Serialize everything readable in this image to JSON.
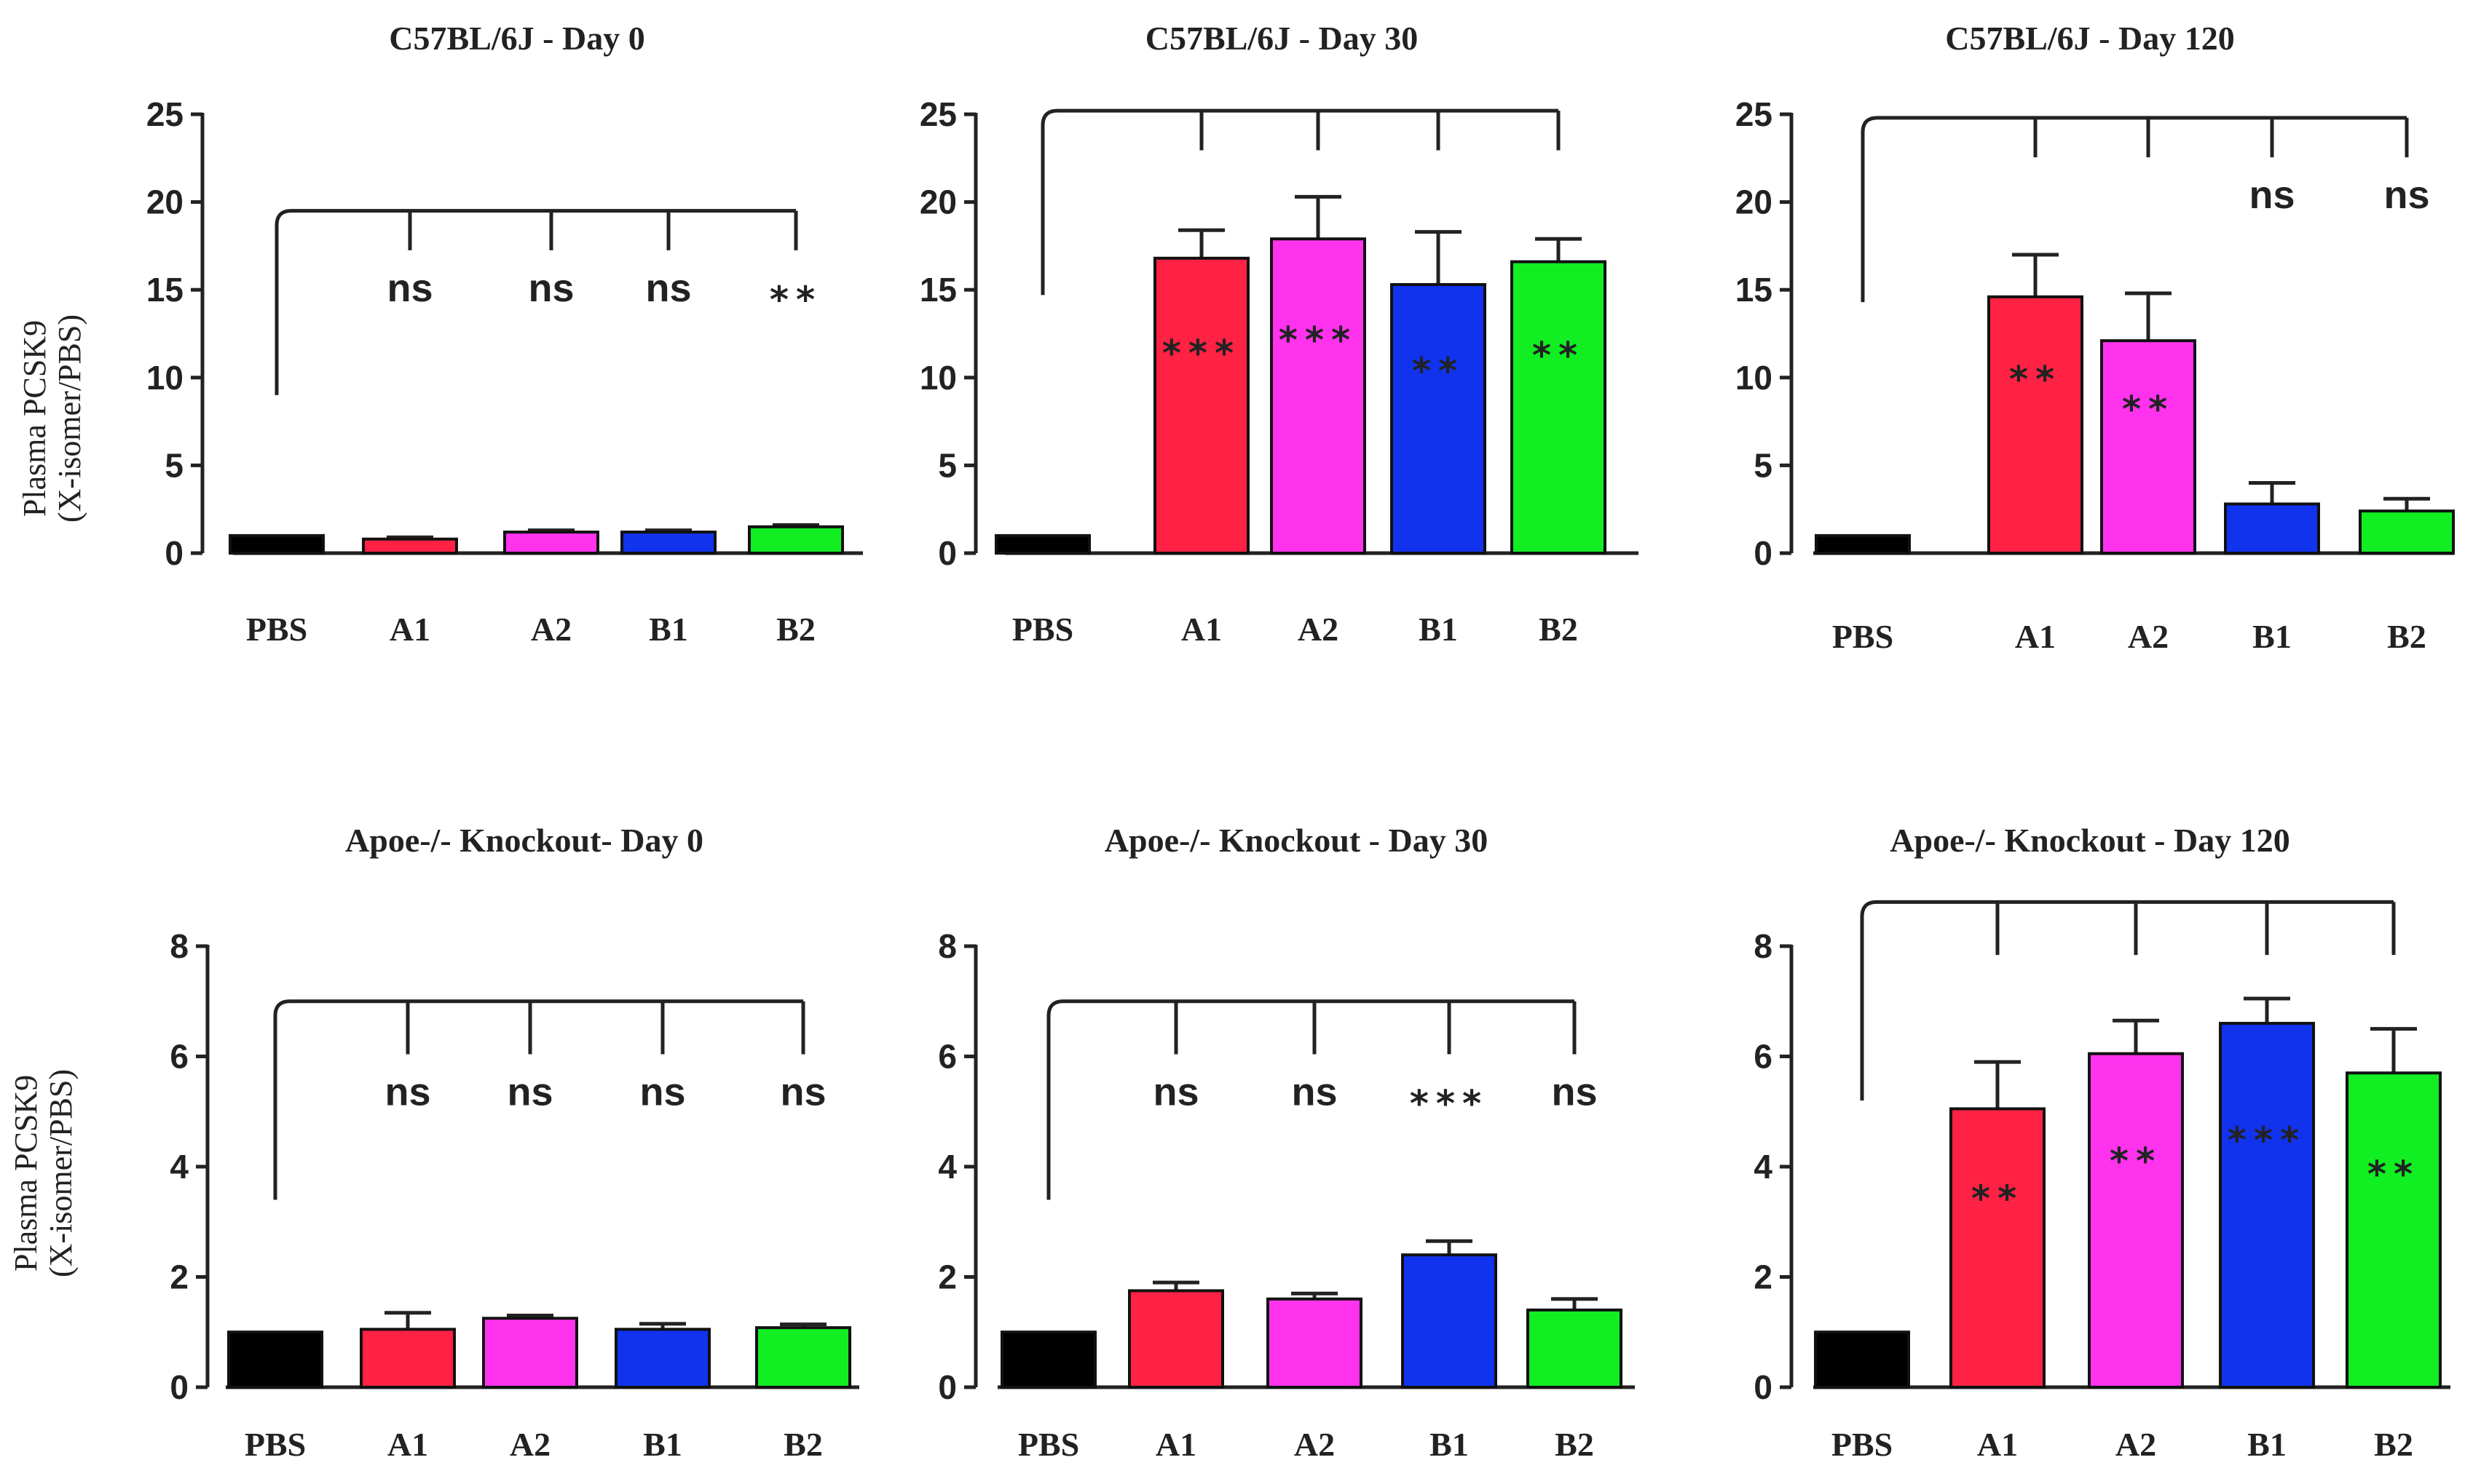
{
  "figure": {
    "y_label_line1": "Plasma PCSK9",
    "y_label_line2": "(X-isomer/PBS)"
  },
  "colors": {
    "PBS": "#000000",
    "A1": "#ff2244",
    "A2": "#ff33ee",
    "B1": "#1133ee",
    "B2": "#11ee22"
  },
  "chart_data": [
    {
      "type": "bar",
      "title": "C57BL/6J - Day 0",
      "ylabel": "Plasma PCSK9 (X-isomer/PBS)",
      "categories": [
        "PBS",
        "A1",
        "A2",
        "B1",
        "B2"
      ],
      "ylim": [
        0,
        25
      ],
      "yticks": [
        0,
        5,
        10,
        15,
        20,
        25
      ],
      "values": [
        1.0,
        0.8,
        1.2,
        1.2,
        1.5
      ],
      "errors": [
        0.0,
        0.1,
        0.1,
        0.1,
        0.1
      ],
      "significance": [
        "",
        "ns",
        "ns",
        "ns",
        "**"
      ],
      "bracket_level": 19.5
    },
    {
      "type": "bar",
      "title": "C57BL/6J - Day 30",
      "ylabel": "",
      "categories": [
        "PBS",
        "A1",
        "A2",
        "B1",
        "B2"
      ],
      "ylim": [
        0,
        25
      ],
      "yticks": [
        0,
        5,
        10,
        15,
        20,
        25
      ],
      "values": [
        1.0,
        16.8,
        17.9,
        15.3,
        16.6
      ],
      "errors": [
        0.0,
        1.6,
        2.4,
        3.0,
        1.3
      ],
      "significance": [
        "",
        "***",
        "***",
        "**",
        "**"
      ],
      "bracket_level": 25.2
    },
    {
      "type": "bar",
      "title": "C57BL/6J - Day 120",
      "ylabel": "",
      "categories": [
        "PBS",
        "A1",
        "A2",
        "B1",
        "B2"
      ],
      "ylim": [
        0,
        25
      ],
      "yticks": [
        0,
        5,
        10,
        15,
        20,
        25
      ],
      "values": [
        1.0,
        14.6,
        12.1,
        2.8,
        2.4
      ],
      "errors": [
        0.0,
        2.4,
        2.7,
        1.2,
        0.7
      ],
      "significance": [
        "",
        "**",
        "**",
        "ns",
        "ns"
      ],
      "bracket_level": 24.8
    },
    {
      "type": "bar",
      "title": "Apoe-/- Knockout- Day 0",
      "ylabel": "Plasma PCSK9 (X-isomer/PBS)",
      "categories": [
        "PBS",
        "A1",
        "A2",
        "B1",
        "B2"
      ],
      "ylim": [
        0,
        8
      ],
      "yticks": [
        0,
        2,
        4,
        6,
        8
      ],
      "values": [
        1.0,
        1.05,
        1.25,
        1.05,
        1.08
      ],
      "errors": [
        0.0,
        0.3,
        0.05,
        0.1,
        0.06
      ],
      "significance": [
        "",
        "ns",
        "ns",
        "ns",
        "ns"
      ],
      "bracket_level": 7.0
    },
    {
      "type": "bar",
      "title": "Apoe-/- Knockout - Day 30",
      "ylabel": "",
      "categories": [
        "PBS",
        "A1",
        "A2",
        "B1",
        "B2"
      ],
      "ylim": [
        0,
        8
      ],
      "yticks": [
        0,
        2,
        4,
        6,
        8
      ],
      "values": [
        1.0,
        1.75,
        1.6,
        2.4,
        1.4
      ],
      "errors": [
        0.0,
        0.15,
        0.1,
        0.25,
        0.2
      ],
      "significance": [
        "",
        "ns",
        "ns",
        "***",
        "ns"
      ],
      "bracket_level": 7.0
    },
    {
      "type": "bar",
      "title": "Apoe-/- Knockout - Day 120",
      "ylabel": "",
      "categories": [
        "PBS",
        "A1",
        "A2",
        "B1",
        "B2"
      ],
      "ylim": [
        0,
        8
      ],
      "yticks": [
        0,
        2,
        4,
        6,
        8
      ],
      "values": [
        1.0,
        5.05,
        6.05,
        6.6,
        5.7
      ],
      "errors": [
        0.0,
        0.85,
        0.6,
        0.45,
        0.8
      ],
      "significance": [
        "",
        "**",
        "**",
        "***",
        "**"
      ],
      "bracket_level": 8.8
    }
  ]
}
